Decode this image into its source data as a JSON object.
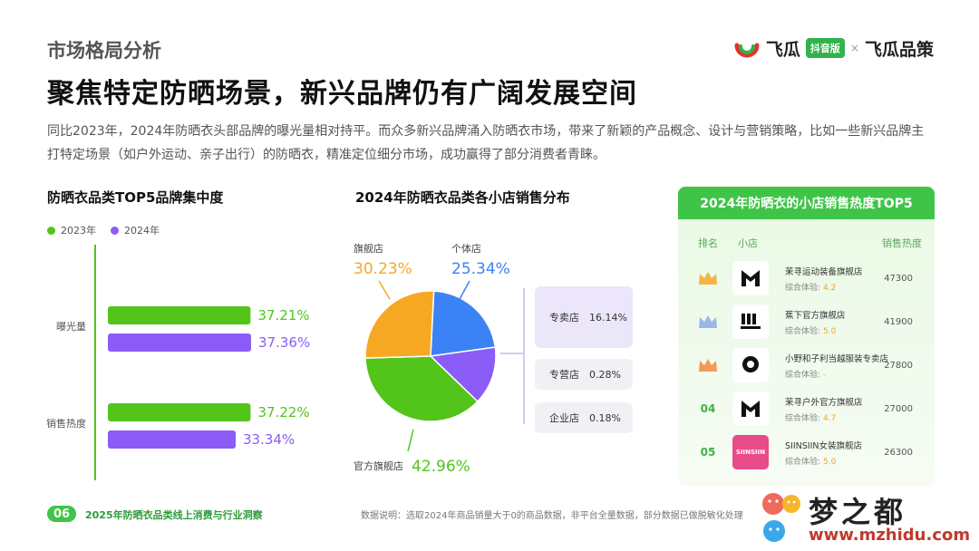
{
  "header": {
    "section_label": "市场格局分析",
    "headline": "聚焦特定防晒场景，新兴品牌仍有广阔发展空间",
    "intro": "同比2023年，2024年防晒衣头部品牌的曝光量相对持平。而众多新兴品牌涌入防晒衣市场，带来了新颖的产品概念、设计与营销策略，比如一些新兴品牌主打特定场景（如户外运动、亲子出行）的防晒衣，精准定位细分市场，成功赢得了部分消费者青睐。"
  },
  "logo": {
    "name": "飞瓜",
    "badge": "抖音版",
    "separator": "×",
    "partner": "飞瓜品策"
  },
  "colors": {
    "green": "#52c41a",
    "purple": "#8b5cf6",
    "orange": "#f7a823",
    "blue": "#3b82f6",
    "lavender": "#ece6fb"
  },
  "chart_data": [
    {
      "type": "bar",
      "title": "防晒衣品类TOP5品牌集中度",
      "categories": [
        "曝光量",
        "销售热度"
      ],
      "series": [
        {
          "name": "2023年",
          "values": [
            37.21,
            37.22
          ],
          "labels": [
            "37.21%",
            "37.22%"
          ]
        },
        {
          "name": "2024年",
          "values": [
            37.36,
            33.34
          ],
          "labels": [
            "37.36%",
            "33.34%"
          ]
        }
      ],
      "orientation": "horizontal",
      "legend": "top-left"
    },
    {
      "type": "pie",
      "title": "2024年防晒衣品类各小店销售分布",
      "slices": [
        {
          "name": "个体店",
          "value": 25.34,
          "label": "25.34%"
        },
        {
          "name": "旗舰店",
          "value": 30.23,
          "label": "30.23%"
        },
        {
          "name": "官方旗舰店",
          "value": 42.96,
          "label": "42.96%"
        }
      ],
      "breakdown": [
        {
          "name": "专卖店",
          "value": 16.14,
          "label": "16.14%"
        },
        {
          "name": "专营店",
          "value": 0.28,
          "label": "0.28%"
        },
        {
          "name": "企业店",
          "value": 0.18,
          "label": "0.18%"
        }
      ]
    },
    {
      "type": "table",
      "title": "2024年防晒衣的小店销售热度TOP5",
      "columns": [
        "排名",
        "小店",
        "销售热度"
      ],
      "score_label": "综合体验:",
      "rows": [
        {
          "rank": "",
          "badge": "gold-crown",
          "logo": "M",
          "name": "茉寻运动装备旗舰店",
          "score": "4.2",
          "heat": "47300"
        },
        {
          "rank": "",
          "badge": "silver-crown",
          "logo": "B",
          "name": "蕉下官方旗舰店",
          "score": "5.0",
          "heat": "41900"
        },
        {
          "rank": "",
          "badge": "bronze-crown",
          "logo": "D",
          "name": "小野和子利当越服装专卖店",
          "score": "-",
          "heat": "27800"
        },
        {
          "rank": "04",
          "badge": "",
          "logo": "M",
          "name": "茉寻户外官方旗舰店",
          "score": "4.7",
          "heat": "27000"
        },
        {
          "rank": "05",
          "badge": "",
          "logo": "SIINSIIN",
          "name": "SIINSIIN女装旗舰店",
          "score": "5.0",
          "heat": "26300"
        }
      ]
    }
  ],
  "footer": {
    "page": "06",
    "report": "2025年防晒衣品类线上消费与行业洞察",
    "note": "数据说明：选取2024年商品销量大于0的商品数据，非平台全量数据，部分数据已做脱敏化处理"
  },
  "watermark": {
    "text": "梦之都",
    "url": "www.mzhidu.com"
  }
}
